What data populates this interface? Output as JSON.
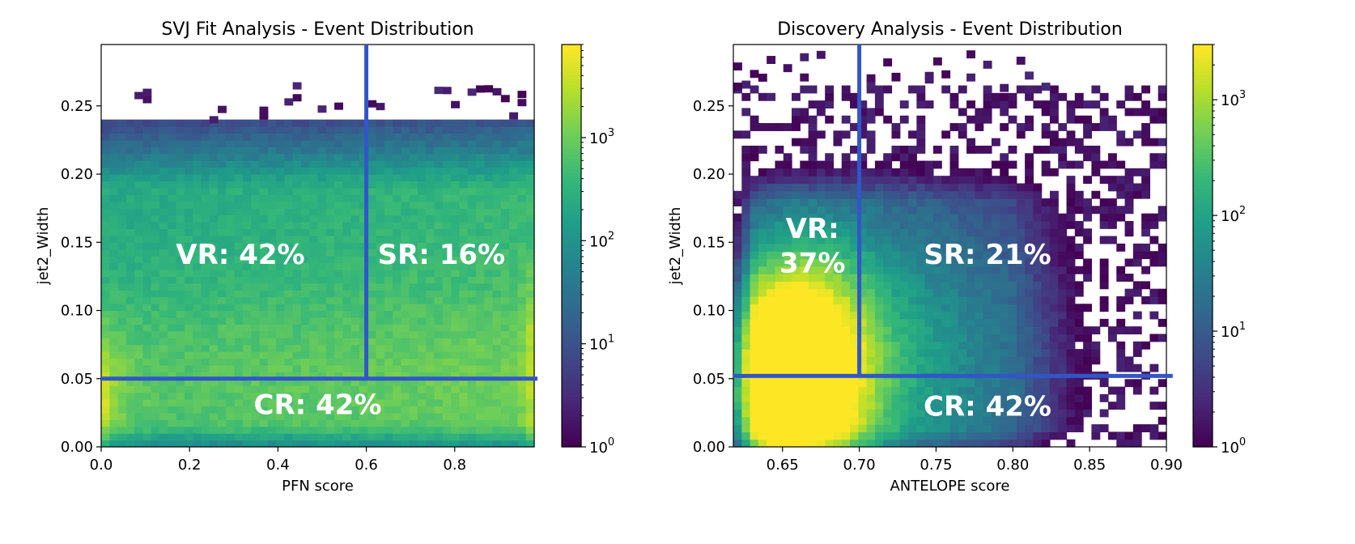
{
  "chart_data": [
    {
      "type": "heatmap",
      "title": "SVJ Fit Analysis - Event Distribution",
      "xlabel": "PFN score",
      "ylabel": "jet2_Width",
      "xlim": [
        0.0,
        0.98
      ],
      "ylim": [
        0.0,
        0.295
      ],
      "xticks": [
        {
          "value": 0.0,
          "label": "0.0"
        },
        {
          "value": 0.2,
          "label": "0.2"
        },
        {
          "value": 0.4,
          "label": "0.4"
        },
        {
          "value": 0.6,
          "label": "0.6"
        },
        {
          "value": 0.8,
          "label": "0.8"
        }
      ],
      "yticks": [
        {
          "value": 0.0,
          "label": "0.00"
        },
        {
          "value": 0.05,
          "label": "0.05"
        },
        {
          "value": 0.1,
          "label": "0.10"
        },
        {
          "value": 0.15,
          "label": "0.15"
        },
        {
          "value": 0.2,
          "label": "0.20"
        },
        {
          "value": 0.25,
          "label": "0.25"
        }
      ],
      "colorbar": {
        "scale": "log",
        "range": [
          1,
          8000
        ],
        "ticks": [
          {
            "value": 1,
            "base": "10",
            "exp": "0"
          },
          {
            "value": 10,
            "base": "10",
            "exp": "1"
          },
          {
            "value": 100,
            "base": "10",
            "exp": "2"
          },
          {
            "value": 1000,
            "base": "10",
            "exp": "3"
          }
        ]
      },
      "cut_lines": [
        {
          "orientation": "horizontal",
          "value": 0.05,
          "from": 0.0,
          "to": 0.98
        },
        {
          "orientation": "vertical",
          "value": 0.6,
          "from": 0.05,
          "to": 0.295
        }
      ],
      "regions": [
        {
          "label": "VR: 42%",
          "x": 0.315,
          "y": 0.134
        },
        {
          "label": "SR: 16%",
          "x": 0.77,
          "y": 0.134
        },
        {
          "label": "CR: 42%",
          "x": 0.49,
          "y": 0.024
        }
      ],
      "color": "#3256c8"
    },
    {
      "type": "heatmap",
      "title": "Discovery Analysis - Event Distribution",
      "xlabel": "ANTELOPE score",
      "ylabel": "jet2_Width",
      "xlim": [
        0.618,
        0.9
      ],
      "ylim": [
        0.0,
        0.295
      ],
      "xticks": [
        {
          "value": 0.65,
          "label": "0.65"
        },
        {
          "value": 0.7,
          "label": "0.70"
        },
        {
          "value": 0.75,
          "label": "0.75"
        },
        {
          "value": 0.8,
          "label": "0.80"
        },
        {
          "value": 0.85,
          "label": "0.85"
        },
        {
          "value": 0.9,
          "label": "0.90"
        }
      ],
      "yticks": [
        {
          "value": 0.0,
          "label": "0.00"
        },
        {
          "value": 0.05,
          "label": "0.05"
        },
        {
          "value": 0.1,
          "label": "0.10"
        },
        {
          "value": 0.15,
          "label": "0.15"
        },
        {
          "value": 0.2,
          "label": "0.20"
        },
        {
          "value": 0.25,
          "label": "0.25"
        }
      ],
      "colorbar": {
        "scale": "log",
        "range": [
          1,
          3000
        ],
        "ticks": [
          {
            "value": 1,
            "base": "10",
            "exp": "0"
          },
          {
            "value": 10,
            "base": "10",
            "exp": "1"
          },
          {
            "value": 100,
            "base": "10",
            "exp": "2"
          },
          {
            "value": 1000,
            "base": "10",
            "exp": "3"
          }
        ]
      },
      "cut_lines": [
        {
          "orientation": "horizontal",
          "value": 0.052,
          "from": 0.618,
          "to": 0.902
        },
        {
          "orientation": "vertical",
          "value": 0.7,
          "from": 0.052,
          "to": 0.295
        }
      ],
      "regions": [
        {
          "label": "VR:",
          "x": 0.6695,
          "y": 0.153
        },
        {
          "label": "37%",
          "x": 0.6695,
          "y": 0.128
        },
        {
          "label": "SR: 21%",
          "x": 0.7835,
          "y": 0.134
        },
        {
          "label": "CR: 42%",
          "x": 0.7835,
          "y": 0.023
        }
      ],
      "color": "#3256c8"
    }
  ]
}
